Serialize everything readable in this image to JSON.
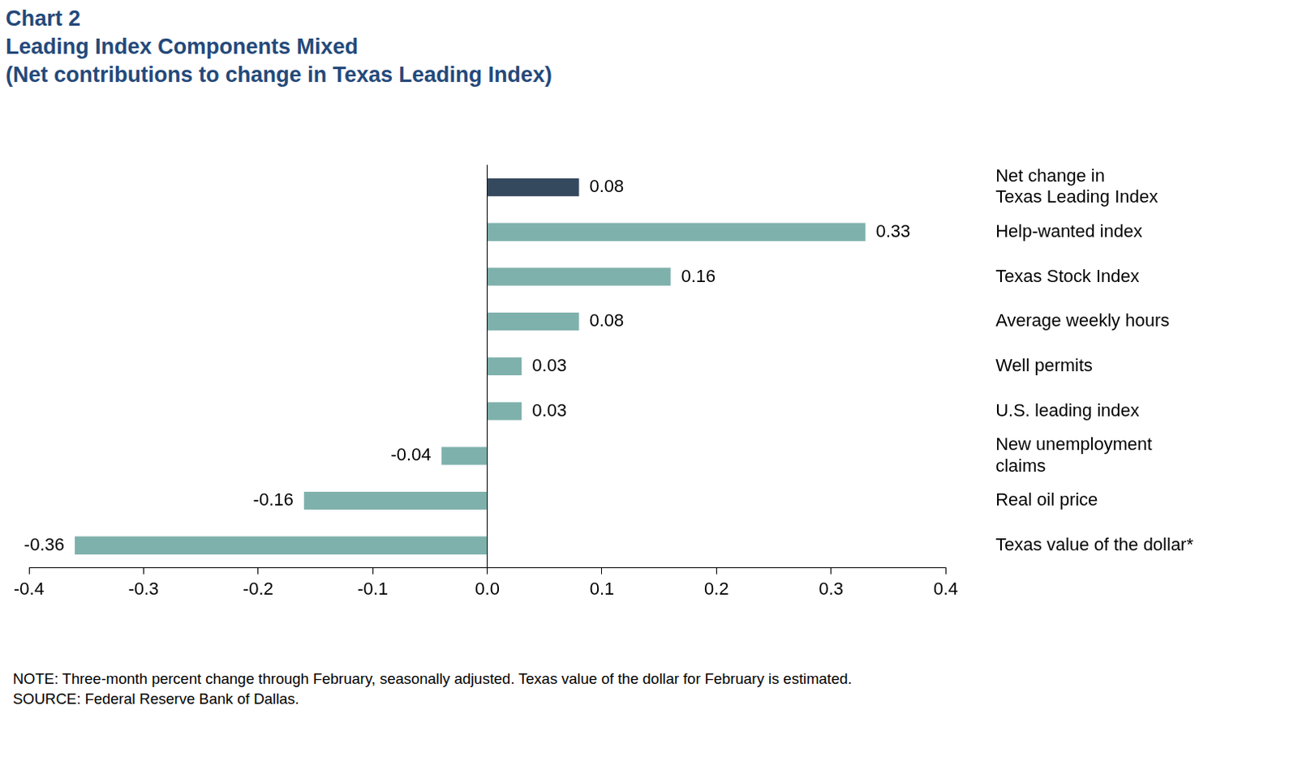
{
  "chart_data": {
    "type": "bar",
    "title": "Chart 2",
    "subtitle": [
      "Leading Index Components Mixed",
      "(Net contributions to change in Texas Leading Index)"
    ],
    "annotations": [
      "NOTE: Three-month percent change through February, seasonally adjusted. Texas value of the dollar for February is estimated.",
      "SOURCE: Federal Reserve Bank of Dallas."
    ],
    "orientation": "horizontal",
    "categories": [
      "Net change in\nTexas Leading Index",
      "Help-wanted index",
      "Texas Stock Index",
      "Average weekly hours",
      "Well permits",
      "U.S. leading index",
      "New unemployment\nclaims",
      "Real oil price",
      "Texas value of the dollar*"
    ],
    "values": [
      0.08,
      0.33,
      0.16,
      0.08,
      0.03,
      0.03,
      -0.04,
      -0.16,
      -0.36
    ],
    "colors": [
      "#34495e",
      "#7fb1ac",
      "#7fb1ac",
      "#7fb1ac",
      "#7fb1ac",
      "#7fb1ac",
      "#7fb1ac",
      "#7fb1ac",
      "#7fb1ac"
    ],
    "xlim": [
      -0.4,
      0.4
    ],
    "xticks": [
      -0.4,
      -0.3,
      -0.2,
      -0.1,
      {
        "value": 0,
        "label": "0.0"
      },
      0.1,
      0.2,
      0.3,
      0.4
    ],
    "grid": false,
    "data_labels": true
  }
}
